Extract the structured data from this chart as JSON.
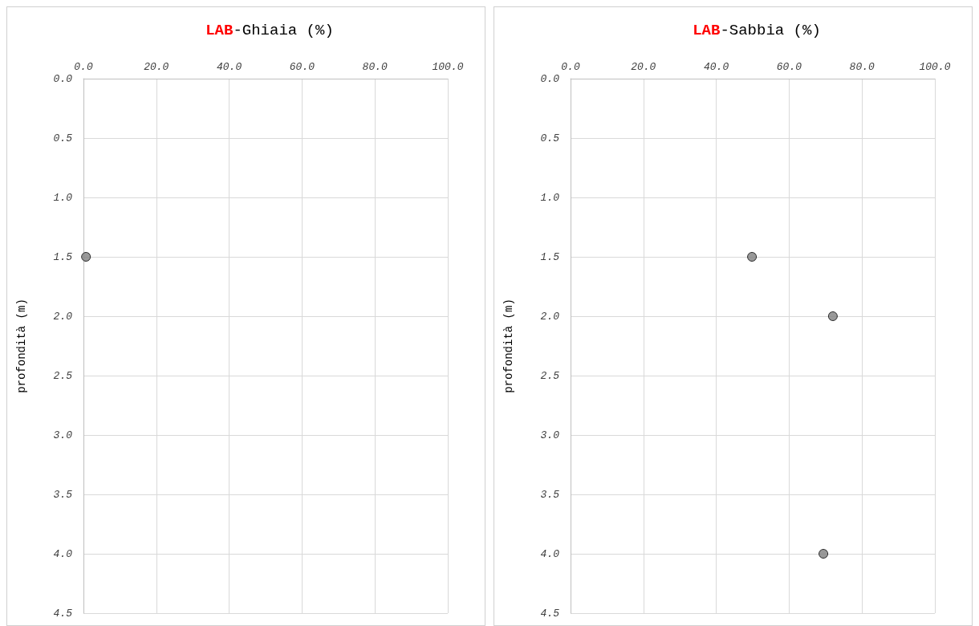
{
  "chart_data": [
    {
      "type": "scatter",
      "title": "LAB-Ghiaia (%)",
      "ylabel": "profondità (m)",
      "x": [
        0.7
      ],
      "values": [
        1.5
      ],
      "color": "#808080",
      "marker": "circle",
      "grid": true,
      "xlim": [
        0,
        100
      ],
      "xticks": [
        {
          "value": 0,
          "label": "0.0"
        },
        {
          "value": 20,
          "label": "20.0"
        },
        {
          "value": 40,
          "label": "40.0"
        },
        {
          "value": 60,
          "label": "60.0"
        },
        {
          "value": 80,
          "label": "80.0"
        },
        {
          "value": 100,
          "label": "100.0"
        }
      ],
      "ylim": [
        4.5,
        0
      ],
      "yticks": [
        {
          "value": 0,
          "label": "0.0"
        },
        {
          "value": 0.5,
          "label": "0.5"
        },
        {
          "value": 1,
          "label": "1.0"
        },
        {
          "value": 1.5,
          "label": "1.5"
        },
        {
          "value": 2,
          "label": "2.0"
        },
        {
          "value": 2.5,
          "label": "2.5"
        },
        {
          "value": 3,
          "label": "3.0"
        },
        {
          "value": 3.5,
          "label": "3.5"
        },
        {
          "value": 4,
          "label": "4.0"
        },
        {
          "value": 4.5,
          "label": "4.5"
        }
      ]
    },
    {
      "type": "scatter",
      "title": "LAB-Sabbia (%)",
      "ylabel": "profondità (m)",
      "x": [
        49.8,
        72.0,
        69.4
      ],
      "values": [
        1.5,
        2.0,
        4.0
      ],
      "color": "#808080",
      "marker": "circle",
      "grid": true,
      "xlim": [
        0,
        100
      ],
      "xticks": [
        {
          "value": 0,
          "label": "0.0"
        },
        {
          "value": 20,
          "label": "20.0"
        },
        {
          "value": 40,
          "label": "40.0"
        },
        {
          "value": 60,
          "label": "60.0"
        },
        {
          "value": 80,
          "label": "80.0"
        },
        {
          "value": 100,
          "label": "100.0"
        }
      ],
      "ylim": [
        4.5,
        0
      ],
      "yticks": [
        {
          "value": 0,
          "label": "0.0"
        },
        {
          "value": 0.5,
          "label": "0.5"
        },
        {
          "value": 1,
          "label": "1.0"
        },
        {
          "value": 1.5,
          "label": "1.5"
        },
        {
          "value": 2,
          "label": "2.0"
        },
        {
          "value": 2.5,
          "label": "2.5"
        },
        {
          "value": 3,
          "label": "3.0"
        },
        {
          "value": 3.5,
          "label": "3.5"
        },
        {
          "value": 4,
          "label": "4.0"
        },
        {
          "value": 4.5,
          "label": "4.5"
        }
      ]
    }
  ]
}
